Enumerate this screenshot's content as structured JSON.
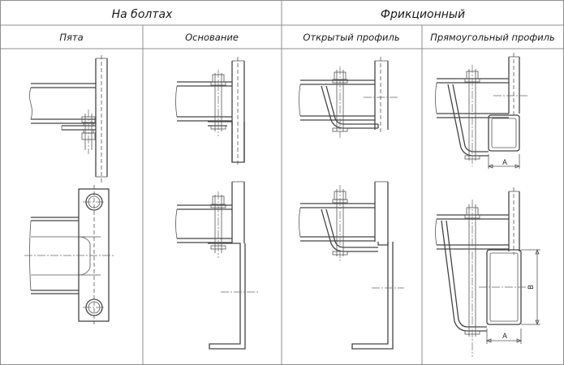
{
  "headers": {
    "group_bolted": "На  болтах",
    "group_friction": "Фрикционный",
    "col_heel": "Пята",
    "col_base": "Основание",
    "col_open_profile": "Открытый профиль",
    "col_rect_profile": "Прямоугольный профиль"
  },
  "dimensions": {
    "a_top": "A",
    "a_bottom": "A",
    "b_bottom": "B"
  }
}
